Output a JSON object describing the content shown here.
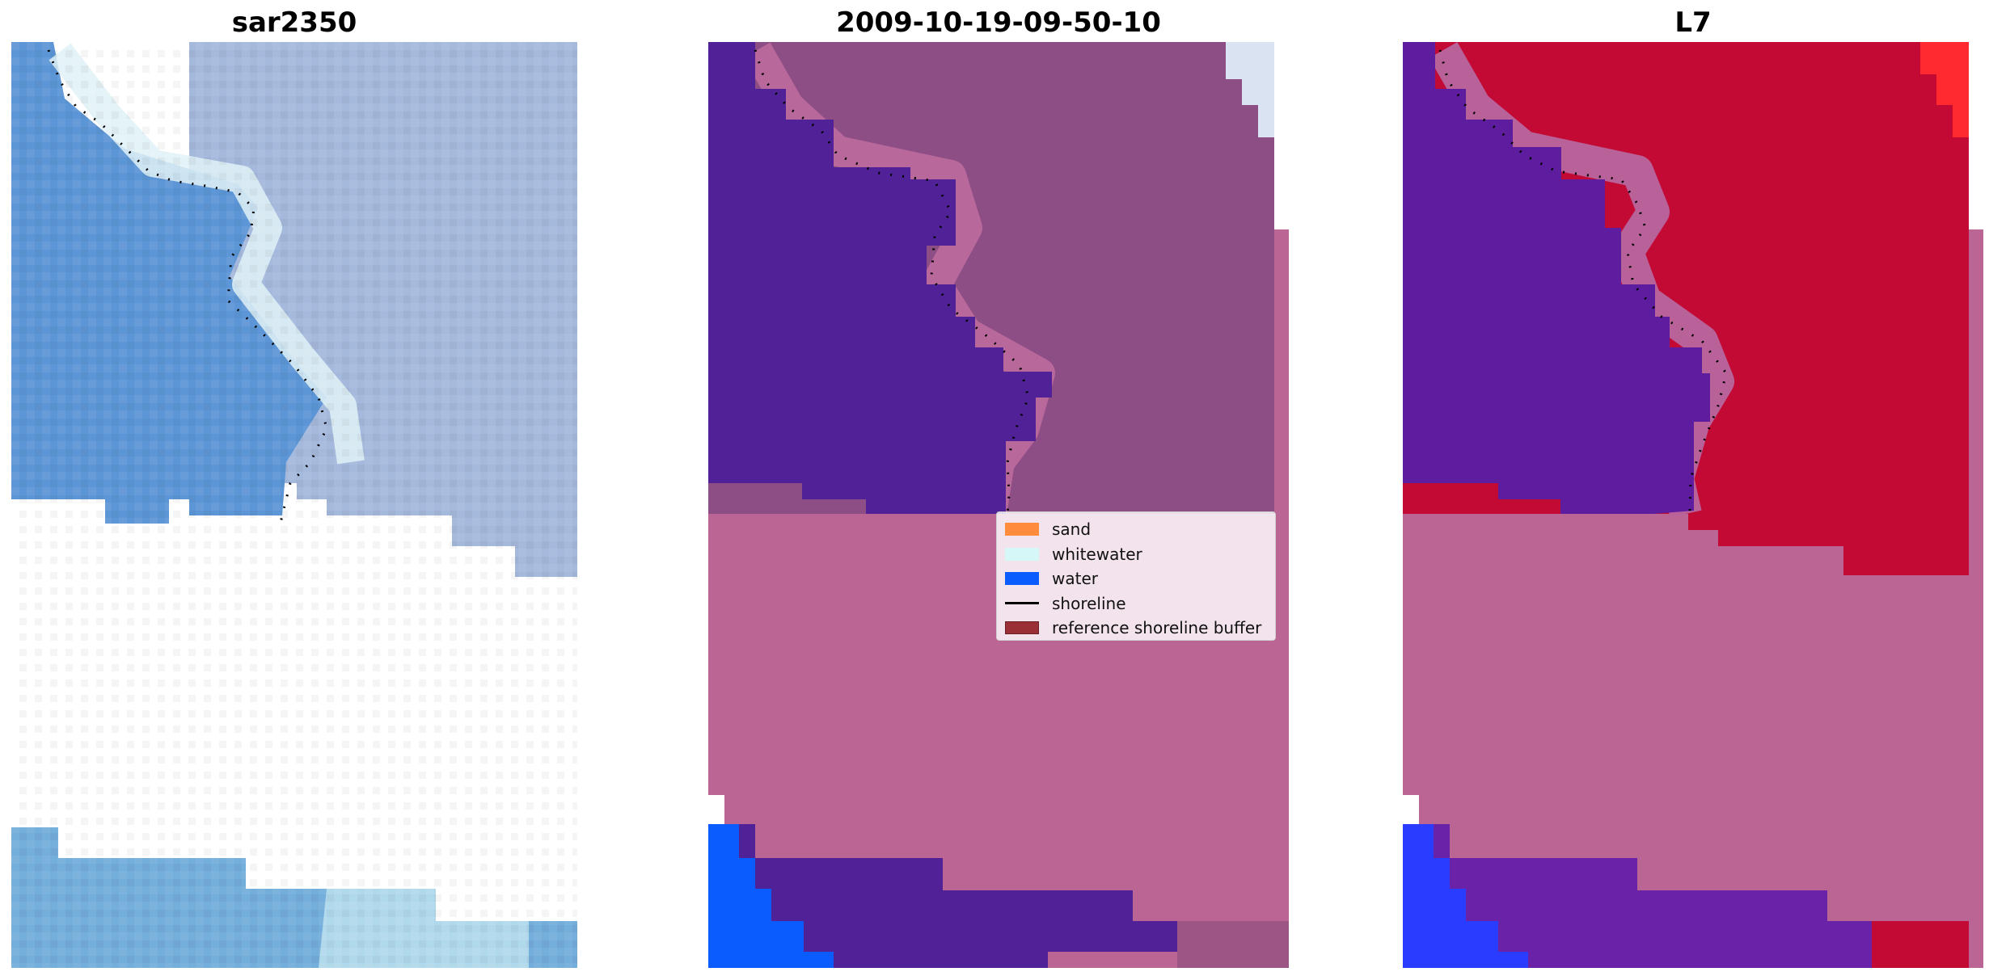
{
  "panels": [
    {
      "title": "sar2350"
    },
    {
      "title": "2009-10-19-09-50-10"
    },
    {
      "title": "L7"
    }
  ],
  "legend": {
    "items": [
      {
        "label": "sand",
        "color": "#ff8c3c"
      },
      {
        "label": "whitewater",
        "color": "#d6f7f7"
      },
      {
        "label": "water",
        "color": "#0a5cff"
      },
      {
        "label": "shoreline",
        "color": "#000000"
      },
      {
        "label": "reference shoreline buffer",
        "color": "#9a3036"
      }
    ]
  },
  "colors": {
    "mask_pink": "#bb6595",
    "ocean_purple": "#512297",
    "land_mauve": "#8d4d85",
    "l7_red": "#c20a35",
    "l7_purple": "#5e1c9e",
    "sar_water": "#5d96d6",
    "sar_land": "#a3b8dc",
    "water_blue": "#0a5cff"
  }
}
